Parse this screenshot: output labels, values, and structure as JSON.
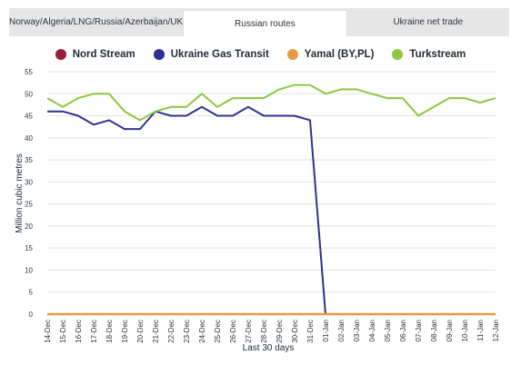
{
  "tabs": [
    {
      "label": "Norway/Algeria/LNG/Russia/Azerbaijan/UK",
      "active": false
    },
    {
      "label": "Russian routes",
      "active": true
    },
    {
      "label": "Ukraine net trade",
      "active": false
    }
  ],
  "colors": {
    "nord_stream": "#9b1b3a",
    "ukraine_gas_transit": "#2e3192",
    "yamal": "#e59a45",
    "turkstream": "#8dc63f",
    "grid": "#e3e3e3",
    "axis": "#999999"
  },
  "chart_data": {
    "type": "line",
    "ylabel": "Million cubic metres",
    "xlabel": "Last 30 days",
    "ylim": [
      0,
      55
    ],
    "yticks": [
      0,
      5,
      10,
      15,
      20,
      25,
      30,
      35,
      40,
      45,
      50,
      55
    ],
    "grid": true,
    "legend_position": "top-center",
    "categories": [
      "14-Dec",
      "15-Dec",
      "16-Dec",
      "17-Dec",
      "18-Dec",
      "19-Dec",
      "20-Dec",
      "21-Dec",
      "22-Dec",
      "23-Dec",
      "24-Dec",
      "25-Dec",
      "26-Dec",
      "27-Dec",
      "28-Dec",
      "29-Dec",
      "30-Dec",
      "31-Dec",
      "01-Jan",
      "02-Jan",
      "03-Jan",
      "04-Jan",
      "05-Jan",
      "06-Jan",
      "07-Jan",
      "08-Jan",
      "09-Jan",
      "10-Jan",
      "11-Jan",
      "12-Jan"
    ],
    "series": [
      {
        "name": "Nord Stream",
        "color_key": "nord_stream",
        "values": [
          0,
          0,
          0,
          0,
          0,
          0,
          0,
          0,
          0,
          0,
          0,
          0,
          0,
          0,
          0,
          0,
          0,
          0,
          0,
          0,
          0,
          0,
          0,
          0,
          0,
          0,
          0,
          0,
          0,
          0
        ]
      },
      {
        "name": "Ukraine Gas Transit",
        "color_key": "ukraine_gas_transit",
        "values": [
          46,
          46,
          45,
          43,
          44,
          42,
          42,
          46,
          45,
          45,
          47,
          45,
          45,
          47,
          45,
          45,
          45,
          44,
          0,
          0,
          0,
          0,
          0,
          0,
          0,
          0,
          0,
          0,
          0,
          0
        ]
      },
      {
        "name": "Yamal (BY,PL)",
        "color_key": "yamal",
        "values": [
          0,
          0,
          0,
          0,
          0,
          0,
          0,
          0,
          0,
          0,
          0,
          0,
          0,
          0,
          0,
          0,
          0,
          0,
          0,
          0,
          0,
          0,
          0,
          0,
          0,
          0,
          0,
          0,
          0,
          0
        ]
      },
      {
        "name": "Turkstream",
        "color_key": "turkstream",
        "values": [
          49,
          47,
          49,
          50,
          50,
          46,
          44,
          46,
          47,
          47,
          50,
          47,
          49,
          49,
          49,
          51,
          52,
          52,
          50,
          51,
          51,
          50,
          49,
          49,
          45,
          47,
          49,
          49,
          48,
          49
        ]
      }
    ]
  }
}
